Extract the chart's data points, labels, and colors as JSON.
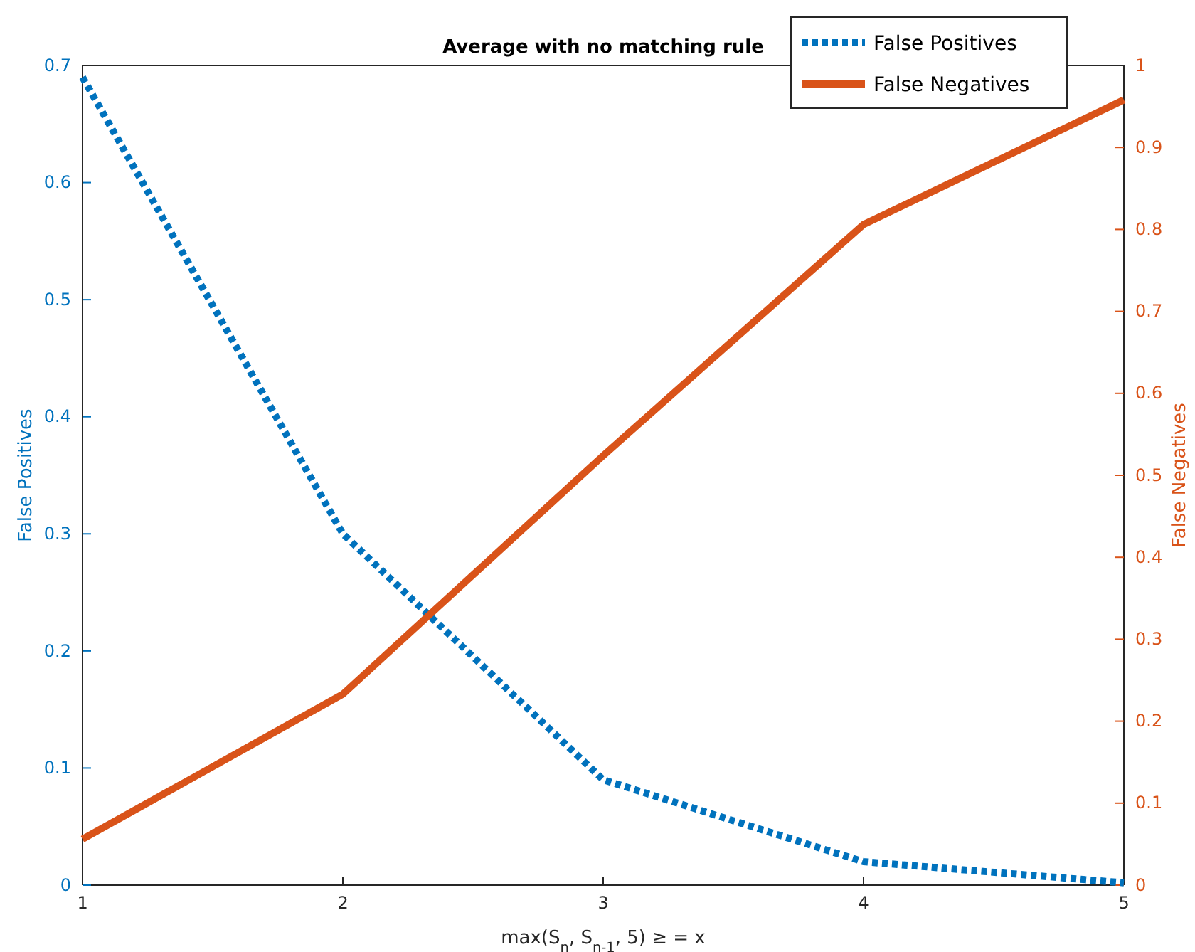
{
  "chart_data": {
    "type": "line",
    "title": "Average with no matching rule",
    "xlabel": "max(S$_{n}$, S$_{n-1}$, 5) ≥ = x",
    "ylabel": "False Positives",
    "y2label": "False Negatives",
    "x": [
      1,
      2,
      3,
      4,
      5
    ],
    "series": [
      {
        "name": "False Positives",
        "color": "#0072bd",
        "values": [
          0.69,
          0.3,
          0.09,
          0.02,
          0.002
        ],
        "line_style": "dotted"
      },
      {
        "name": "False Negatives",
        "color": "#d95319",
        "values": [
          0.056,
          0.233,
          0.524,
          0.806,
          0.958
        ],
        "axis": "y2",
        "line_style": "solid"
      }
    ],
    "xlim": [
      1,
      5
    ],
    "xticks": [
      1,
      2,
      3,
      4,
      5
    ],
    "ylim": [
      0,
      0.7
    ],
    "yticks": [
      0,
      0.1,
      0.2,
      0.3,
      0.4,
      0.5,
      0.6,
      0.7
    ],
    "y2lim": [
      0,
      1
    ],
    "y2ticks": [
      0,
      0.1,
      0.2,
      0.3,
      0.4,
      0.5,
      0.6,
      0.7,
      0.8,
      0.9,
      1
    ],
    "legend": "top right",
    "grid": false
  }
}
